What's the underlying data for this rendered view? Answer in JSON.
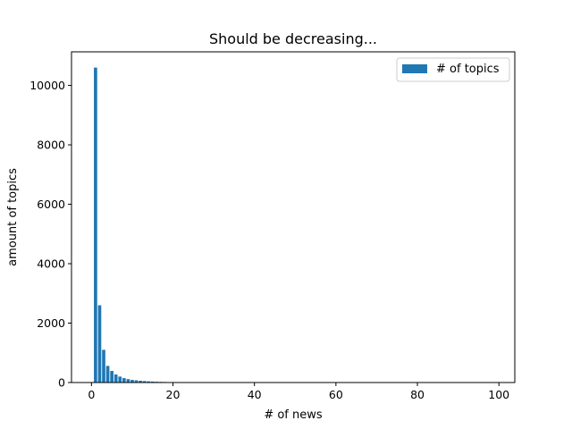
{
  "chart_data": {
    "type": "bar",
    "title": "Should be decreasing...",
    "xlabel": "# of news",
    "ylabel": "amount of topics",
    "xlim": [
      -4.9,
      103.9
    ],
    "ylim": [
      0,
      11130
    ],
    "xticks": [
      0,
      20,
      40,
      60,
      80,
      100
    ],
    "yticks": [
      0,
      2000,
      4000,
      6000,
      8000,
      10000
    ],
    "grid": false,
    "legend_position": "top-right",
    "bar_color": "#1f77b4",
    "series": [
      {
        "name": "# of topics",
        "x": [
          1,
          2,
          3,
          4,
          5,
          6,
          7,
          8,
          9,
          10,
          11,
          12,
          13,
          14,
          15,
          16,
          17,
          18,
          19,
          20,
          21,
          22,
          23,
          24,
          25,
          26,
          27,
          28,
          29,
          30,
          31,
          32,
          33,
          34,
          35,
          36,
          37,
          38,
          39,
          40,
          41,
          42,
          43,
          44,
          45,
          46,
          47,
          48,
          49,
          50,
          51,
          52,
          53,
          54,
          55,
          56,
          57,
          58,
          59,
          60,
          61,
          62,
          63,
          64,
          65,
          66,
          67,
          68,
          69,
          70,
          71,
          72,
          73,
          74,
          75,
          76,
          77,
          78,
          79,
          80,
          81,
          82,
          83,
          84,
          85,
          86,
          87,
          88,
          89,
          90,
          91,
          92,
          93,
          94,
          95,
          96,
          97,
          98,
          99
        ],
        "values": [
          10600,
          2600,
          1100,
          560,
          390,
          270,
          200,
          150,
          115,
          90,
          75,
          60,
          50,
          40,
          32,
          26,
          22,
          18,
          15,
          13,
          11,
          10,
          9,
          8,
          7,
          6,
          6,
          5,
          5,
          4,
          4,
          4,
          3,
          3,
          3,
          3,
          2,
          2,
          2,
          2,
          2,
          2,
          2,
          2,
          1,
          1,
          1,
          1,
          1,
          1,
          1,
          1,
          1,
          1,
          1,
          1,
          1,
          1,
          1,
          1,
          1,
          1,
          1,
          1,
          1,
          1,
          1,
          1,
          1,
          1,
          1,
          1,
          1,
          1,
          1,
          1,
          1,
          1,
          1,
          1,
          1,
          1,
          1,
          1,
          1,
          1,
          1,
          1,
          1,
          1,
          1,
          1,
          1,
          1,
          1,
          1,
          1,
          1,
          1
        ]
      }
    ]
  }
}
